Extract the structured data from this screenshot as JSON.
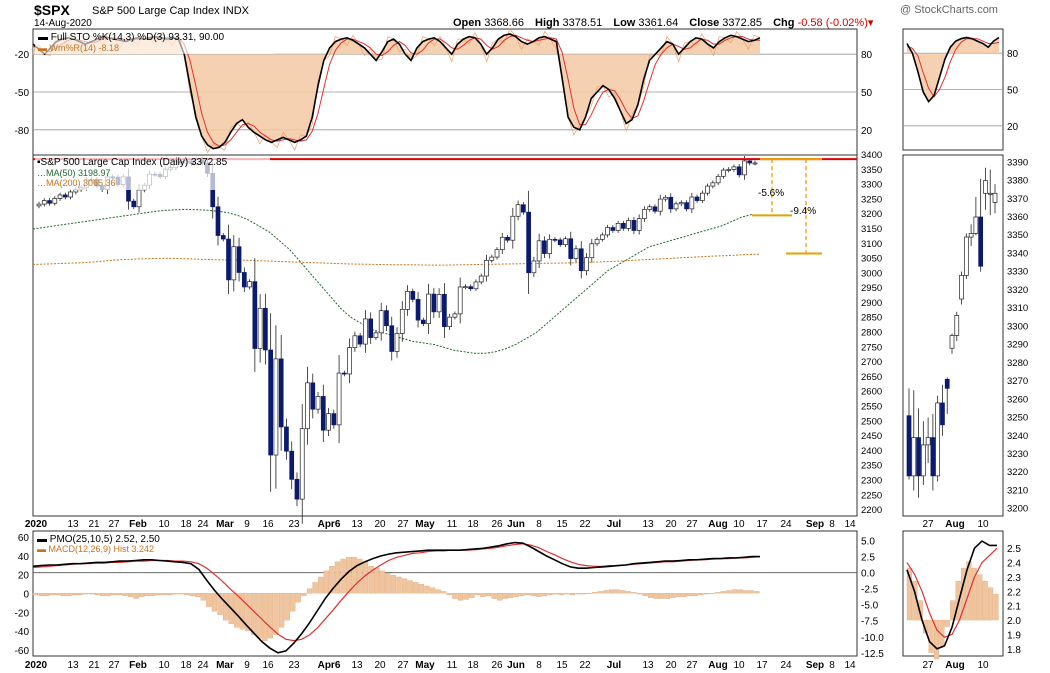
{
  "header": {
    "symbol": "$SPX",
    "name": "S&P 500 Large Cap Index",
    "exchange": "INDX",
    "date": "14-Aug-2020",
    "open_label": "Open",
    "open": "3368.66",
    "high_label": "High",
    "high": "3378.51",
    "low_label": "Low",
    "low": "3361.64",
    "close_label": "Close",
    "close": "3372.85",
    "chg_label": "Chg",
    "chg": "-0.58 (-0.02%)",
    "credit": "@ StockCharts.com"
  },
  "colors": {
    "candle_down": "#0a1a6e",
    "ma50": "#1e6b2e",
    "ma200": "#c8741e",
    "resistance": "#e00000",
    "drawdown": "#e8a000",
    "stoch_fill": "#f5c9a3",
    "pmo": "#000000",
    "signal": "#e03030",
    "hist": "#f0c49c"
  },
  "chart_data": [
    {
      "panel": "stochastic",
      "type": "line",
      "legend": [
        "Full STO %K(14,3) %D(3) 93.31, 90.00",
        "Wm%R(14) -8.18"
      ],
      "y_left_ticks": [
        "-20",
        "-50",
        "-80"
      ],
      "y_right_ticks": [
        "80",
        "50",
        "20"
      ],
      "ylim": [
        0,
        100
      ],
      "k": [
        88,
        84,
        80,
        85,
        90,
        92,
        93,
        92,
        90,
        88,
        90,
        92,
        94,
        93,
        92,
        91,
        90,
        92,
        93,
        92,
        93,
        94,
        93,
        92,
        93,
        92,
        80,
        55,
        30,
        15,
        8,
        5,
        6,
        10,
        18,
        25,
        28,
        22,
        18,
        15,
        12,
        10,
        12,
        14,
        12,
        10,
        12,
        15,
        30,
        55,
        75,
        85,
        90,
        92,
        93,
        91,
        88,
        85,
        80,
        75,
        82,
        90,
        92,
        88,
        80,
        75,
        85,
        90,
        92,
        93,
        90,
        85,
        80,
        88,
        92,
        94,
        93,
        88,
        80,
        85,
        92,
        95,
        96,
        94,
        90,
        88,
        90,
        93,
        94,
        92,
        90,
        60,
        30,
        22,
        20,
        30,
        45,
        50,
        55,
        52,
        45,
        35,
        25,
        28,
        40,
        60,
        75,
        80,
        85,
        90,
        88,
        80,
        85,
        90,
        93,
        92,
        88,
        85,
        90,
        93,
        95,
        94,
        92,
        90,
        91,
        93
      ],
      "d": [
        86,
        85,
        83,
        82,
        85,
        88,
        91,
        92,
        91,
        90,
        89,
        90,
        92,
        93,
        93,
        92,
        91,
        91,
        92,
        92,
        92,
        93,
        93,
        93,
        93,
        93,
        88,
        75,
        55,
        33,
        18,
        10,
        7,
        8,
        12,
        18,
        24,
        25,
        23,
        18,
        15,
        12,
        11,
        12,
        13,
        12,
        11,
        12,
        19,
        33,
        53,
        72,
        83,
        89,
        92,
        92,
        90,
        88,
        85,
        80,
        79,
        82,
        87,
        90,
        87,
        81,
        80,
        83,
        89,
        92,
        92,
        89,
        85,
        84,
        87,
        91,
        93,
        92,
        87,
        84,
        86,
        91,
        94,
        95,
        93,
        91,
        90,
        91,
        92,
        93,
        92,
        81,
        60,
        37,
        24,
        24,
        32,
        42,
        50,
        52,
        51,
        44,
        35,
        29,
        31,
        43,
        58,
        72,
        80,
        85,
        88,
        86,
        84,
        85,
        89,
        92,
        91,
        88,
        88,
        91,
        93,
        94,
        94,
        92,
        91,
        91
      ]
    },
    {
      "panel": "price",
      "type": "candlestick",
      "legend": [
        "S&P 500 Large Cap Index (Daily) 3372.85",
        "MA(50) 3198.97",
        "MA(200) 3065.36"
      ],
      "ylim": [
        2180,
        3400
      ],
      "y_ticks": [
        3400,
        3350,
        3300,
        3250,
        3200,
        3150,
        3100,
        3050,
        3000,
        2950,
        2900,
        2850,
        2800,
        2750,
        2700,
        2650,
        2600,
        2550,
        2500,
        2450,
        2400,
        2350,
        2300,
        2250,
        2200
      ],
      "x_labels": [
        "2020",
        "13",
        "21",
        "27",
        "Feb",
        "10",
        "18",
        "24",
        "Mar",
        "9",
        "16",
        "23",
        "Apr6",
        "13",
        "20",
        "27",
        "May",
        "11",
        "18",
        "26",
        "Jun",
        "8",
        "15",
        "22",
        "Jul",
        "13",
        "20",
        "27",
        "Aug",
        "10",
        "17",
        "24",
        "Sep",
        "8",
        "14"
      ],
      "closes": [
        3234,
        3246,
        3237,
        3253,
        3265,
        3258,
        3275,
        3283,
        3289,
        3316,
        3317,
        3295,
        3283,
        3326,
        3325,
        3300,
        3326,
        3244,
        3225,
        3282,
        3298,
        3335,
        3334,
        3327,
        3352,
        3357,
        3379,
        3373,
        3380,
        3370,
        3386,
        3373,
        3338,
        3225,
        3128,
        3116,
        2978,
        3090,
        3003,
        2954,
        2972,
        2746,
        2882,
        2741,
        2386,
        2711,
        2481,
        2399,
        2304,
        2237,
        2475,
        2630,
        2541,
        2584,
        2470,
        2526,
        2488,
        2663,
        2660,
        2749,
        2789,
        2761,
        2846,
        2783,
        2799,
        2874,
        2823,
        2736,
        2797,
        2878,
        2939,
        2912,
        2842,
        2830,
        2930,
        2870,
        2929,
        2820,
        2852,
        2863,
        2954,
        2955,
        2948,
        2971,
        2991,
        3044,
        3055,
        3080,
        3122,
        3112,
        3193,
        3232,
        3207,
        3002,
        3042,
        3110,
        3067,
        3115,
        3113,
        3097,
        3117,
        3050,
        3083,
        3009,
        3053,
        3100,
        3115,
        3130,
        3155,
        3145,
        3169,
        3152,
        3179,
        3145,
        3185,
        3216,
        3225,
        3210,
        3251,
        3257,
        3218,
        3235,
        3239,
        3218,
        3258,
        3246,
        3271,
        3295,
        3306,
        3328,
        3349,
        3351,
        3360,
        3333,
        3380,
        3373,
        3373
      ],
      "ma50": [
        3150,
        3155,
        3160,
        3165,
        3170,
        3175,
        3180,
        3185,
        3190,
        3195,
        3200,
        3205,
        3210,
        3213,
        3215,
        3216,
        3215,
        3213,
        3210,
        3205,
        3195,
        3180,
        3160,
        3140,
        3110,
        3080,
        3040,
        3000,
        2960,
        2920,
        2880,
        2850,
        2830,
        2810,
        2800,
        2790,
        2780,
        2770,
        2765,
        2760,
        2750,
        2740,
        2735,
        2730,
        2730,
        2735,
        2745,
        2760,
        2780,
        2800,
        2830,
        2860,
        2890,
        2920,
        2950,
        2980,
        3010,
        3030,
        3050,
        3070,
        3090,
        3100,
        3110,
        3120,
        3130,
        3140,
        3150,
        3160,
        3175,
        3190,
        3199
      ],
      "ma200": [
        3030,
        3032,
        3034,
        3036,
        3040,
        3045,
        3048,
        3050,
        3051,
        3050,
        3048,
        3046,
        3045,
        3044,
        3042,
        3040,
        3038,
        3036,
        3034,
        3032,
        3031,
        3030,
        3029,
        3029,
        3028,
        3028,
        3029,
        3030,
        3031,
        3032,
        3033,
        3034,
        3035,
        3036,
        3038,
        3040,
        3043,
        3046,
        3049,
        3052,
        3055,
        3058,
        3060,
        3063,
        3065
      ],
      "resistance": 3386,
      "annotations": [
        "-5.6%",
        "-9.4%"
      ]
    },
    {
      "panel": "pmo",
      "type": "line",
      "legend": [
        "PMO(25,10,5) 2.52, 2.50",
        "MACD(12,26,9) Hist 3.242"
      ],
      "y_left_ticks": [
        "60",
        "40",
        "20",
        "0",
        "-20",
        "-40",
        "-60"
      ],
      "y_right_ticks": [
        "5.0",
        "2.5",
        "0.0",
        "-2.5",
        "-5.0",
        "-7.5",
        "-10.0",
        "-12.5"
      ],
      "ylim": [
        -13,
        6.5
      ],
      "pmo": [
        1.0,
        1.1,
        1.2,
        1.2,
        1.3,
        1.4,
        1.4,
        1.5,
        1.6,
        1.6,
        1.7,
        1.8,
        1.8,
        1.9,
        2.0,
        2.0,
        1.9,
        1.8,
        1.7,
        1.6,
        1.4,
        0.5,
        -1.2,
        -2.8,
        -4.2,
        -5.5,
        -6.8,
        -8.2,
        -9.5,
        -10.8,
        -11.8,
        -12.5,
        -12.2,
        -11.0,
        -9.5,
        -7.8,
        -5.9,
        -4.0,
        -2.4,
        -1.0,
        0.2,
        1.1,
        1.7,
        2.2,
        2.6,
        2.9,
        3.1,
        3.2,
        3.3,
        3.4,
        3.5,
        3.5,
        3.5,
        3.5,
        3.5,
        3.6,
        3.7,
        3.8,
        4.0,
        4.2,
        4.5,
        4.7,
        4.6,
        4.0,
        3.3,
        2.6,
        2.0,
        1.4,
        0.9,
        0.7,
        0.7,
        0.8,
        0.9,
        1.0,
        1.1,
        1.2,
        1.4,
        1.5,
        1.6,
        1.7,
        1.8,
        1.8,
        1.9,
        2.0,
        2.0,
        2.1,
        2.2,
        2.2,
        2.3,
        2.3,
        2.4,
        2.5,
        2.5
      ],
      "signal": [
        0.8,
        0.9,
        1.0,
        1.1,
        1.2,
        1.3,
        1.4,
        1.4,
        1.5,
        1.5,
        1.6,
        1.6,
        1.7,
        1.8,
        1.8,
        1.9,
        1.9,
        1.9,
        1.8,
        1.8,
        1.7,
        1.4,
        0.7,
        -0.3,
        -1.4,
        -2.6,
        -3.7,
        -4.9,
        -6.1,
        -7.3,
        -8.5,
        -9.6,
        -10.4,
        -10.6,
        -10.4,
        -9.7,
        -8.6,
        -7.2,
        -5.8,
        -4.3,
        -2.9,
        -1.6,
        -0.5,
        0.4,
        1.2,
        1.9,
        2.4,
        2.7,
        3.0,
        3.1,
        3.3,
        3.4,
        3.4,
        3.5,
        3.5,
        3.5,
        3.6,
        3.7,
        3.8,
        4.0,
        4.2,
        4.4,
        4.5,
        4.3,
        3.9,
        3.3,
        2.8,
        2.2,
        1.7,
        1.3,
        1.1,
        1.0,
        1.0,
        1.1,
        1.1,
        1.2,
        1.3,
        1.4,
        1.5,
        1.6,
        1.7,
        1.7,
        1.8,
        1.9,
        2.0,
        2.0,
        2.1,
        2.2,
        2.2,
        2.3,
        2.3,
        2.4,
        2.5
      ],
      "hist": [
        -2,
        -3,
        -3,
        -2,
        -2,
        -3,
        -3,
        -2,
        -2,
        -1,
        -1,
        -2,
        -3,
        -3,
        -2,
        -2,
        -3,
        -4,
        -6,
        -4,
        -3,
        -3,
        -2,
        -2,
        -2,
        -1,
        -1,
        -2,
        -3,
        -4,
        -8,
        -15,
        -20,
        -24,
        -30,
        -34,
        -38,
        -40,
        -42,
        -46,
        -50,
        -53,
        -50,
        -46,
        -38,
        -30,
        -20,
        -10,
        -3,
        5,
        12,
        18,
        25,
        30,
        35,
        38,
        40,
        40,
        38,
        35,
        30,
        28,
        25,
        22,
        20,
        18,
        16,
        14,
        12,
        10,
        8,
        6,
        4,
        2,
        -2,
        -6,
        -8,
        -7,
        -5,
        -2,
        -4,
        -3,
        -6,
        -8,
        -6,
        -5,
        -4,
        -3,
        -2,
        -3,
        -4,
        -3,
        -2,
        -1,
        -2,
        -1,
        -2,
        -1,
        -1,
        0,
        1,
        2,
        3,
        4,
        4,
        3,
        2,
        1,
        -1,
        -3,
        -5,
        -6,
        -6,
        -6,
        -5,
        -4,
        -4,
        -3,
        -3,
        -2,
        -1,
        0,
        1,
        2,
        3,
        4,
        4,
        3,
        3,
        2
      ]
    },
    {
      "panel": "zoom-price",
      "type": "candlestick",
      "y_ticks": [
        3390,
        3380,
        3370,
        3360,
        3350,
        3340,
        3330,
        3320,
        3310,
        3300,
        3290,
        3280,
        3270,
        3260,
        3250,
        3240,
        3230,
        3220,
        3210,
        3200
      ],
      "ylim": [
        3196,
        3394
      ],
      "x_labels": [
        "27",
        "Aug",
        "10"
      ],
      "candles": [
        [
          3251,
          3218,
          3266,
          3216
        ],
        [
          3218,
          3239,
          3265,
          3210
        ],
        [
          3239,
          3218,
          3255,
          3206
        ],
        [
          3218,
          3235,
          3248,
          3213
        ],
        [
          3235,
          3239,
          3250,
          3225
        ],
        [
          3239,
          3218,
          3252,
          3210
        ],
        [
          3218,
          3258,
          3262,
          3215
        ],
        [
          3258,
          3246,
          3268,
          3240
        ],
        [
          3271,
          3266,
          3272,
          3252
        ],
        [
          3288,
          3295,
          3296,
          3285
        ],
        [
          3295,
          3306,
          3308,
          3292
        ],
        [
          3315,
          3328,
          3330,
          3312
        ],
        [
          3328,
          3349,
          3351,
          3326
        ],
        [
          3349,
          3351,
          3356,
          3344
        ],
        [
          3351,
          3360,
          3371,
          3350
        ],
        [
          3360,
          3333,
          3381,
          3330
        ],
        [
          3373,
          3380,
          3387,
          3364
        ],
        [
          3373,
          3373,
          3386,
          3361
        ],
        [
          3368,
          3373,
          3378,
          3362
        ]
      ]
    },
    {
      "panel": "zoom-stochastic",
      "type": "line",
      "y_right_ticks": [
        "80",
        "50",
        "20"
      ],
      "ylim": [
        0,
        100
      ],
      "k": [
        88,
        80,
        65,
        48,
        40,
        45,
        60,
        75,
        85,
        90,
        92,
        93,
        92,
        90,
        88,
        85,
        90,
        93
      ],
      "d": [
        86,
        84,
        78,
        64,
        51,
        44,
        50,
        60,
        73,
        83,
        89,
        92,
        92,
        92,
        90,
        88,
        88,
        89
      ]
    },
    {
      "panel": "zoom-pmo",
      "type": "line",
      "y_right_ticks": [
        "2.5",
        "2.4",
        "2.3",
        "2.2",
        "2.1",
        "2.0",
        "1.9",
        "1.8"
      ],
      "ylim": [
        1.75,
        2.62
      ],
      "pmo": [
        2.35,
        2.2,
        2.0,
        1.85,
        1.8,
        1.82,
        1.95,
        2.15,
        2.35,
        2.5,
        2.55,
        2.52,
        2.52
      ],
      "signal": [
        2.4,
        2.32,
        2.2,
        2.05,
        1.93,
        1.88,
        1.9,
        2.0,
        2.15,
        2.3,
        2.4,
        2.45,
        2.5
      ],
      "x_labels": [
        "27",
        "Aug",
        "10"
      ]
    }
  ]
}
